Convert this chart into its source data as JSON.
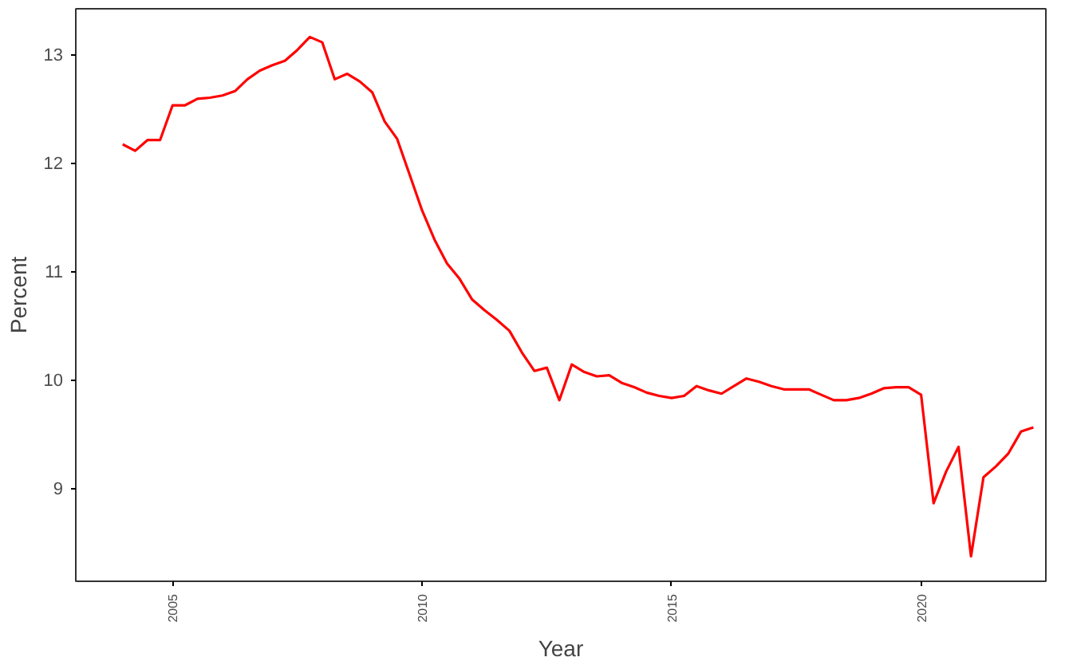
{
  "chart_data": {
    "type": "line",
    "xlabel": "Year",
    "ylabel": "Percent",
    "x": [
      2004.0,
      2004.25,
      2004.5,
      2004.75,
      2005.0,
      2005.25,
      2005.5,
      2005.75,
      2006.0,
      2006.25,
      2006.5,
      2006.75,
      2007.0,
      2007.25,
      2007.5,
      2007.75,
      2008.0,
      2008.25,
      2008.5,
      2008.75,
      2009.0,
      2009.25,
      2009.5,
      2009.75,
      2010.0,
      2010.25,
      2010.5,
      2010.75,
      2011.0,
      2011.25,
      2011.5,
      2011.75,
      2012.0,
      2012.25,
      2012.5,
      2012.75,
      2013.0,
      2013.25,
      2013.5,
      2013.75,
      2014.0,
      2014.25,
      2014.5,
      2014.75,
      2015.0,
      2015.25,
      2015.5,
      2015.75,
      2016.0,
      2016.25,
      2016.5,
      2016.75,
      2017.0,
      2017.25,
      2017.5,
      2017.75,
      2018.0,
      2018.25,
      2018.5,
      2018.75,
      2019.0,
      2019.25,
      2019.5,
      2019.75,
      2020.0,
      2020.25,
      2020.5,
      2020.75,
      2021.0,
      2021.25,
      2021.5,
      2021.75,
      2022.0,
      2022.25
    ],
    "series": [
      {
        "color": "#ff0000",
        "values": [
          12.17,
          12.11,
          12.21,
          12.21,
          12.53,
          12.53,
          12.59,
          12.6,
          12.62,
          12.66,
          12.77,
          12.85,
          12.9,
          12.94,
          13.04,
          13.16,
          13.11,
          12.77,
          12.82,
          12.75,
          12.65,
          12.38,
          12.22,
          11.89,
          11.56,
          11.29,
          11.07,
          10.93,
          10.74,
          10.64,
          10.55,
          10.45,
          10.25,
          10.08,
          10.11,
          9.81,
          10.14,
          10.07,
          10.03,
          10.04,
          9.97,
          9.93,
          9.88,
          9.85,
          9.83,
          9.85,
          9.94,
          9.9,
          9.87,
          9.94,
          10.01,
          9.98,
          9.94,
          9.91,
          9.91,
          9.91,
          9.86,
          9.81,
          9.81,
          9.83,
          9.87,
          9.92,
          9.93,
          9.93,
          9.86,
          8.86,
          9.15,
          9.38,
          8.37,
          9.1,
          9.2,
          9.32,
          9.52,
          9.56
        ]
      }
    ],
    "xlim": [
      2003.06,
      2022.5
    ],
    "ylim": [
      8.14,
      13.42
    ],
    "xticks": [
      2005,
      2010,
      2015,
      2020
    ],
    "yticks": [
      9,
      10,
      11,
      12,
      13
    ],
    "grid": false,
    "line_style": "solid",
    "marker": "none"
  }
}
